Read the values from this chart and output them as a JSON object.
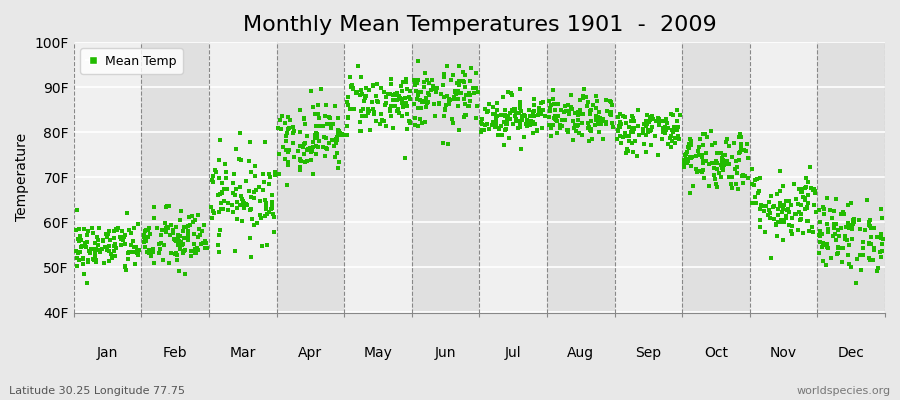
{
  "title": "Monthly Mean Temperatures 1901  -  2009",
  "ylabel": "Temperature",
  "xlabel_labels": [
    "Jan",
    "Feb",
    "Mar",
    "Apr",
    "May",
    "Jun",
    "Jul",
    "Aug",
    "Sep",
    "Oct",
    "Nov",
    "Dec"
  ],
  "ylim": [
    40,
    100
  ],
  "ytick_values": [
    40,
    50,
    60,
    70,
    80,
    90,
    100
  ],
  "ytick_labels": [
    "40F",
    "50F",
    "60F",
    "70F",
    "80F",
    "90F",
    "100F"
  ],
  "legend_label": "Mean Temp",
  "dot_color": "#22BB00",
  "dot_marker": "s",
  "dot_size": 5,
  "background_color": "#E8E8E8",
  "inner_bg_light": "#F0F0F0",
  "inner_bg_dark": "#E0E0E0",
  "title_fontsize": 16,
  "axis_fontsize": 10,
  "footer_left": "Latitude 30.25 Longitude 77.75",
  "footer_right": "worldspecies.org",
  "monthly_means": [
    54.5,
    56.0,
    66.0,
    79.0,
    86.5,
    87.5,
    83.5,
    83.0,
    80.5,
    74.0,
    63.5,
    57.0
  ],
  "monthly_spreads": [
    3.0,
    3.5,
    5.0,
    4.0,
    3.5,
    3.5,
    2.5,
    2.5,
    2.5,
    3.5,
    4.0,
    4.0
  ],
  "num_years": 109,
  "seed": 42
}
